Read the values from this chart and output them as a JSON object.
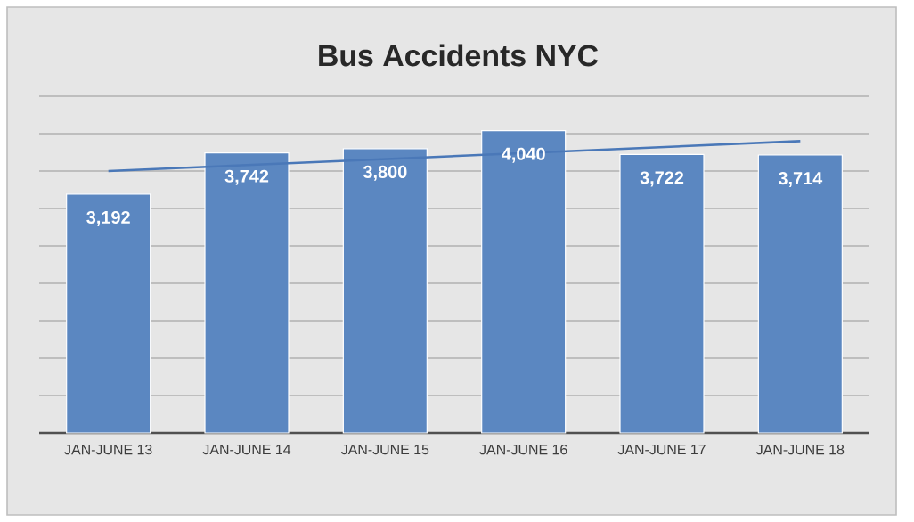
{
  "chart_data": {
    "type": "bar",
    "title": "Bus Accidents NYC",
    "categories": [
      "JAN-JUNE 13",
      "JAN-JUNE 14",
      "JAN-JUNE 15",
      "JAN-JUNE 16",
      "JAN-JUNE 17",
      "JAN-JUNE 18"
    ],
    "series": [
      {
        "color": "#5b87c1",
        "values": [
          3192,
          3742,
          3800,
          4040,
          3722,
          3714
        ],
        "value_labels": [
          "3,192",
          "3,742",
          "3,800",
          "4,040",
          "3,722",
          "3,714"
        ]
      },
      {
        "type": "line",
        "color": "#4a78b8",
        "x": [
          "JAN-JUNE 13",
          "JAN-JUNE 18"
        ],
        "values": [
          3500,
          3900
        ]
      }
    ],
    "ylim": [
      0,
      4500
    ],
    "yticks": [
      {
        "value": 0,
        "label": null
      },
      {
        "value": 500,
        "label": null
      },
      {
        "value": 1000,
        "label": null
      },
      {
        "value": 1500,
        "label": null
      },
      {
        "value": 2000,
        "label": null
      },
      {
        "value": 2500,
        "label": null
      },
      {
        "value": 3000,
        "label": null
      },
      {
        "value": 3500,
        "label": null
      },
      {
        "value": 4000,
        "label": null
      },
      {
        "value": 4500,
        "label": null
      }
    ],
    "tick_labels": "x",
    "grid": "y"
  }
}
